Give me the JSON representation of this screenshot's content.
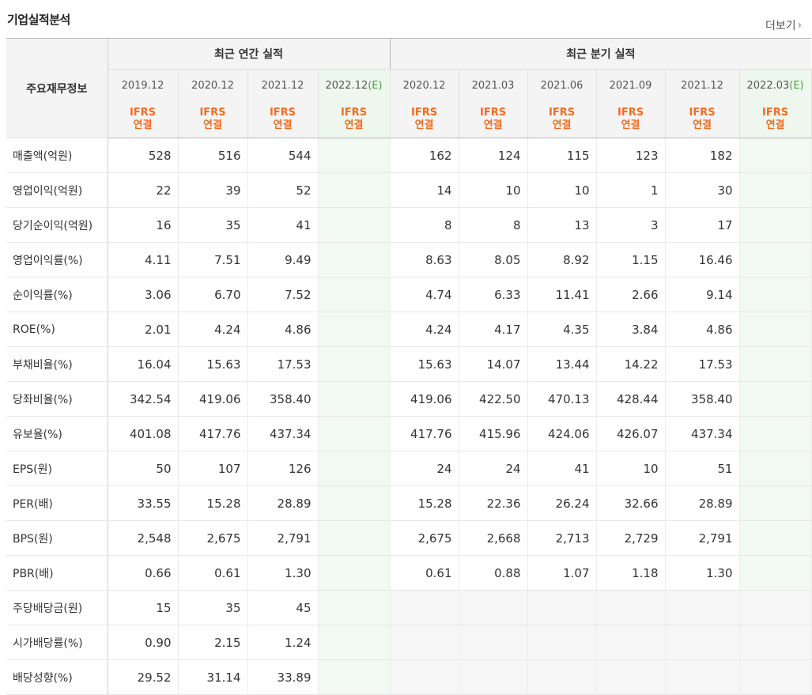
{
  "section_title": "기업실적분석",
  "more_label": "더보기",
  "header": {
    "row_label": "주요재무정보",
    "annual_group": "최근 연간 실적",
    "quarter_group": "최근 분기 실적",
    "annual_periods": [
      "2019.12",
      "2020.12",
      "2021.12",
      "2022.12(E)"
    ],
    "quarter_periods": [
      "2020.12",
      "2021.03",
      "2021.06",
      "2021.09",
      "2021.12",
      "2022.03(E)"
    ],
    "basis_line1": "IFRS",
    "basis_line2": "연결"
  },
  "rows": [
    {
      "label": "매출액(억원)",
      "annual": [
        "528",
        "516",
        "544",
        ""
      ],
      "quarter": [
        "162",
        "124",
        "115",
        "123",
        "182",
        ""
      ]
    },
    {
      "label": "영업이익(억원)",
      "annual": [
        "22",
        "39",
        "52",
        ""
      ],
      "quarter": [
        "14",
        "10",
        "10",
        "1",
        "30",
        ""
      ]
    },
    {
      "label": "당기순이익(억원)",
      "annual": [
        "16",
        "35",
        "41",
        ""
      ],
      "quarter": [
        "8",
        "8",
        "13",
        "3",
        "17",
        ""
      ]
    },
    {
      "label": "영업이익률(%)",
      "annual": [
        "4.11",
        "7.51",
        "9.49",
        ""
      ],
      "quarter": [
        "8.63",
        "8.05",
        "8.92",
        "1.15",
        "16.46",
        ""
      ]
    },
    {
      "label": "순이익률(%)",
      "annual": [
        "3.06",
        "6.70",
        "7.52",
        ""
      ],
      "quarter": [
        "4.74",
        "6.33",
        "11.41",
        "2.66",
        "9.14",
        ""
      ]
    },
    {
      "label": "ROE(%)",
      "annual": [
        "2.01",
        "4.24",
        "4.86",
        ""
      ],
      "quarter": [
        "4.24",
        "4.17",
        "4.35",
        "3.84",
        "4.86",
        ""
      ]
    },
    {
      "label": "부채비율(%)",
      "annual": [
        "16.04",
        "15.63",
        "17.53",
        ""
      ],
      "quarter": [
        "15.63",
        "14.07",
        "13.44",
        "14.22",
        "17.53",
        ""
      ]
    },
    {
      "label": "당좌비율(%)",
      "annual": [
        "342.54",
        "419.06",
        "358.40",
        ""
      ],
      "quarter": [
        "419.06",
        "422.50",
        "470.13",
        "428.44",
        "358.40",
        ""
      ]
    },
    {
      "label": "유보율(%)",
      "annual": [
        "401.08",
        "417.76",
        "437.34",
        ""
      ],
      "quarter": [
        "417.76",
        "415.96",
        "424.06",
        "426.07",
        "437.34",
        ""
      ]
    },
    {
      "label": "EPS(원)",
      "annual": [
        "50",
        "107",
        "126",
        ""
      ],
      "quarter": [
        "24",
        "24",
        "41",
        "10",
        "51",
        ""
      ]
    },
    {
      "label": "PER(배)",
      "annual": [
        "33.55",
        "15.28",
        "28.89",
        ""
      ],
      "quarter": [
        "15.28",
        "22.36",
        "26.24",
        "32.66",
        "28.89",
        ""
      ]
    },
    {
      "label": "BPS(원)",
      "annual": [
        "2,548",
        "2,675",
        "2,791",
        ""
      ],
      "quarter": [
        "2,675",
        "2,668",
        "2,713",
        "2,729",
        "2,791",
        ""
      ]
    },
    {
      "label": "PBR(배)",
      "annual": [
        "0.66",
        "0.61",
        "1.30",
        ""
      ],
      "quarter": [
        "0.61",
        "0.88",
        "1.07",
        "1.18",
        "1.30",
        ""
      ]
    },
    {
      "label": "주당배당금(원)",
      "annual": [
        "15",
        "35",
        "45",
        ""
      ],
      "quarter": [
        "",
        "",
        "",
        "",
        "",
        ""
      ]
    },
    {
      "label": "시가배당률(%)",
      "annual": [
        "0.90",
        "2.15",
        "1.24",
        ""
      ],
      "quarter": [
        "",
        "",
        "",
        "",
        "",
        ""
      ]
    },
    {
      "label": "배당성향(%)",
      "annual": [
        "29.52",
        "31.14",
        "33.89",
        ""
      ],
      "quarter": [
        "",
        "",
        "",
        "",
        "",
        ""
      ]
    }
  ],
  "colors": {
    "basis_text": "#f06d22",
    "estimate_year": "#4ba13f",
    "estimate_bg": "#eef7ee"
  }
}
